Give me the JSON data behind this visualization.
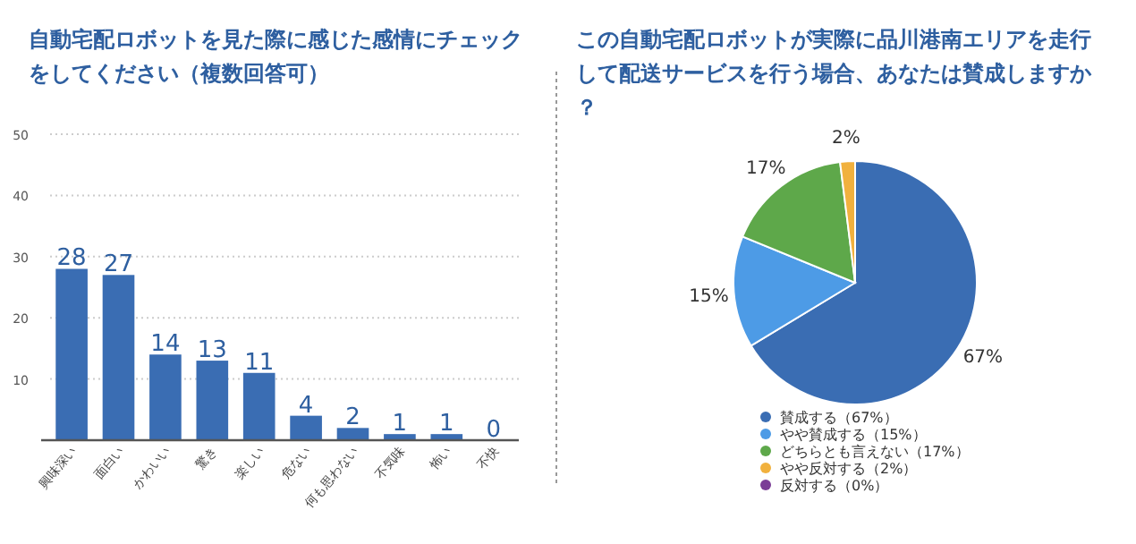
{
  "chart_data": [
    {
      "type": "bar",
      "title": "自動宅配ロボットを見た際に感じた感情にチェックをしてください（複数回答可）",
      "categories": [
        "興味深い",
        "面白い",
        "かわいい",
        "驚き",
        "楽しい",
        "危ない",
        "何も思わない",
        "不気味",
        "怖い",
        "不快"
      ],
      "values": [
        28,
        27,
        14,
        13,
        11,
        4,
        2,
        1,
        1,
        0
      ],
      "color": "#3a6db3",
      "ylim": [
        0,
        50
      ],
      "yticks": [
        {
          "value": 0,
          "label": null
        },
        10,
        20,
        30,
        40,
        50
      ],
      "grid": "y",
      "data_labels": true
    },
    {
      "type": "pie",
      "title": "この自動宅配ロボットが実際に品川港南エリアを走行して配送サービスを行う場合、あなたは賛成しますか？",
      "categories": [
        "賛成する（67%）",
        "やや賛成する（15%）",
        "どちらとも言えない（17%）",
        "やや反対する（2%）",
        "反対する（0%）"
      ],
      "values": [
        67,
        15,
        17,
        2,
        0
      ],
      "colors": [
        "#3a6db3",
        "#4d9be6",
        "#5ea84a",
        "#f1b13e",
        "#7b3d96"
      ],
      "value_labels": [
        "67%",
        "15%",
        "17%",
        "2%",
        null
      ],
      "legend": "bottom"
    }
  ]
}
